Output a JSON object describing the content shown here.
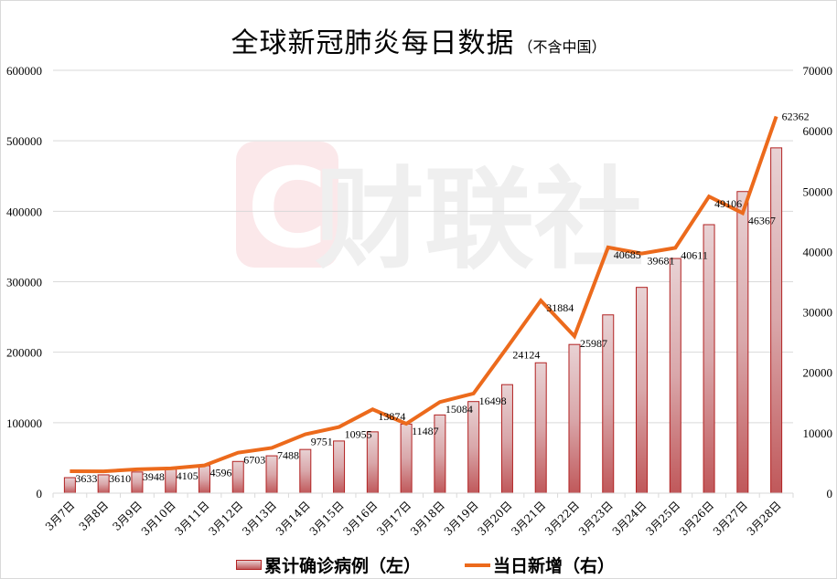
{
  "title": {
    "main": "全球新冠肺炎每日数据",
    "sub": "（不含中国）"
  },
  "watermark": {
    "logo_letter": "C",
    "text": "财联社"
  },
  "legend": {
    "bars": "累计确诊病例（左）",
    "line": "当日新增（右）"
  },
  "colors": {
    "bar_fill_top": "#e8d2d4",
    "bar_fill_bottom": "#c0585a",
    "bar_border": "#b22222",
    "line": "#ec6a1c",
    "grid": "#d9d9d9"
  },
  "axes": {
    "left_ticks": [
      "0",
      "100000",
      "200000",
      "300000",
      "400000",
      "500000",
      "600000"
    ],
    "right_ticks": [
      "0",
      "10000",
      "20000",
      "30000",
      "40000",
      "50000",
      "60000",
      "70000"
    ]
  },
  "chart_data": {
    "type": "bar+line",
    "title": "全球新冠肺炎每日数据（不含中国）",
    "categories": [
      "3月7日",
      "3月8日",
      "3月9日",
      "3月10日",
      "3月11日",
      "3月12日",
      "3月13日",
      "3月14日",
      "3月15日",
      "3月16日",
      "3月17日",
      "3月18日",
      "3月19日",
      "3月20日",
      "3月21日",
      "3月22日",
      "3月23日",
      "3月24日",
      "3月25日",
      "3月26日",
      "3月27日",
      "3月28日"
    ],
    "series": [
      {
        "name": "累计确诊病例（左）",
        "type": "bar",
        "axis": "left",
        "values": [
          22000,
          26000,
          30000,
          34000,
          39000,
          45000,
          53000,
          62000,
          74000,
          87000,
          98000,
          111000,
          130000,
          154000,
          185000,
          211000,
          253000,
          292000,
          333000,
          381000,
          428000,
          490000
        ]
      },
      {
        "name": "当日新增（右）",
        "type": "line",
        "axis": "right",
        "values": [
          3633,
          3610,
          3948,
          4105,
          4596,
          6703,
          7488,
          9751,
          10955,
          13874,
          11487,
          15084,
          16498,
          24124,
          31884,
          25987,
          40685,
          39681,
          40611,
          49106,
          46367,
          62362
        ],
        "labels": [
          "3633",
          "3610",
          "3948",
          "4105",
          "4596",
          "6703",
          "7488",
          "9751",
          "10955",
          "13874",
          "11487",
          "15084",
          "16498",
          "24124",
          "31884",
          "25987",
          "40685",
          "39681",
          "40611",
          "49106",
          "46367",
          "62362"
        ]
      }
    ],
    "xlabel": "",
    "ylabel_left": "",
    "ylabel_right": "",
    "ylim_left": [
      0,
      600000
    ],
    "ylim_right": [
      0,
      70000
    ],
    "grid": true,
    "legend_position": "bottom"
  }
}
